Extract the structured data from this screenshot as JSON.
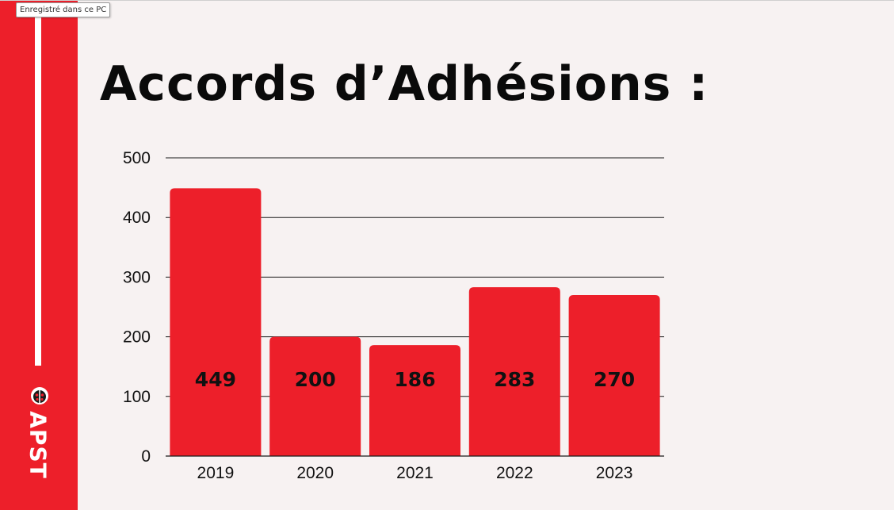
{
  "tooltip": {
    "text": "Enregistré dans ce PC"
  },
  "title": "Accords d’Adhésions :",
  "logo": {
    "text": "APST",
    "icon": "ladybug-icon"
  },
  "colors": {
    "bar": "#ed1f2a",
    "sidebar": "#ed1f2a",
    "background": "#f7f2f2"
  },
  "chart_data": {
    "type": "bar",
    "categories": [
      "2019",
      "2020",
      "2021",
      "2022",
      "2023"
    ],
    "values": [
      449,
      200,
      186,
      283,
      270
    ],
    "data_labels": [
      "449",
      "200",
      "186",
      "283",
      "270"
    ],
    "ylim": [
      0,
      500
    ],
    "yticks": [
      0,
      100,
      200,
      300,
      400,
      500
    ],
    "grid": true,
    "xlabel": "",
    "ylabel": ""
  }
}
